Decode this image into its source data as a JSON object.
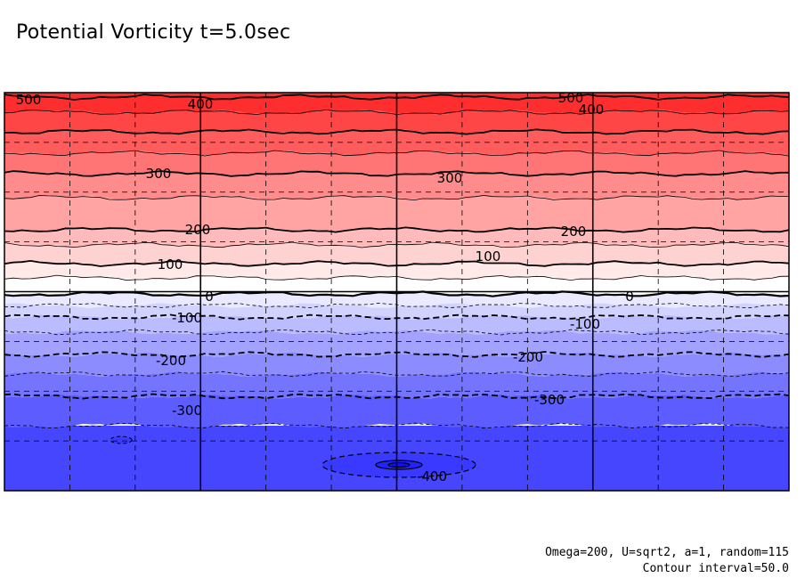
{
  "chart_data": {
    "type": "contour",
    "title": "Potential Vorticity t=5.0sec",
    "variable": "Potential Vorticity",
    "time": "t=5.0sec",
    "contour_interval": 50.0,
    "range": [
      -400,
      500
    ],
    "fill_levels": [
      {
        "from": -450,
        "to": -350,
        "color": "#4646ff"
      },
      {
        "from": -350,
        "to": -300,
        "color": "#5d5dff"
      },
      {
        "from": -300,
        "to": -250,
        "color": "#7474ff"
      },
      {
        "from": -250,
        "to": -200,
        "color": "#8c8cff"
      },
      {
        "from": -200,
        "to": -150,
        "color": "#a3a3ff"
      },
      {
        "from": -150,
        "to": -100,
        "color": "#bbbbff"
      },
      {
        "from": -100,
        "to": -50,
        "color": "#d2d2ff"
      },
      {
        "from": -50,
        "to": 0,
        "color": "#e9e9ff"
      },
      {
        "from": 0,
        "to": 50,
        "color": "#ffffff"
      },
      {
        "from": 50,
        "to": 100,
        "color": "#ffe9e9"
      },
      {
        "from": 100,
        "to": 150,
        "color": "#ffd2d2"
      },
      {
        "from": 150,
        "to": 200,
        "color": "#ffbbbb"
      },
      {
        "from": 200,
        "to": 250,
        "color": "#ffa3a3"
      },
      {
        "from": 250,
        "to": 300,
        "color": "#ff8c8c"
      },
      {
        "from": 300,
        "to": 350,
        "color": "#ff7474"
      },
      {
        "from": 350,
        "to": 400,
        "color": "#ff5d5d"
      },
      {
        "from": 400,
        "to": 450,
        "color": "#ff4646"
      },
      {
        "from": 450,
        "to": 550,
        "color": "#ff2e2e"
      }
    ],
    "vortex": {
      "value": -400,
      "color": "#2323ff"
    },
    "contour_labels": [
      "500",
      "400",
      "300",
      "200",
      "100",
      "0",
      "-100",
      "-200",
      "-300",
      "-400",
      "500",
      "400",
      "300",
      "200",
      "100",
      "0",
      "-100",
      "-200",
      "-300"
    ],
    "grid": {
      "major_x_divisions": 4,
      "minor_x_divisions": 12,
      "major_y_divisions": 1,
      "minor_y_divisions": 8
    },
    "footer": {
      "params": "Omega=200, U=sqrt2, a=1, random=115",
      "interval": "Contour interval=50.0"
    }
  }
}
